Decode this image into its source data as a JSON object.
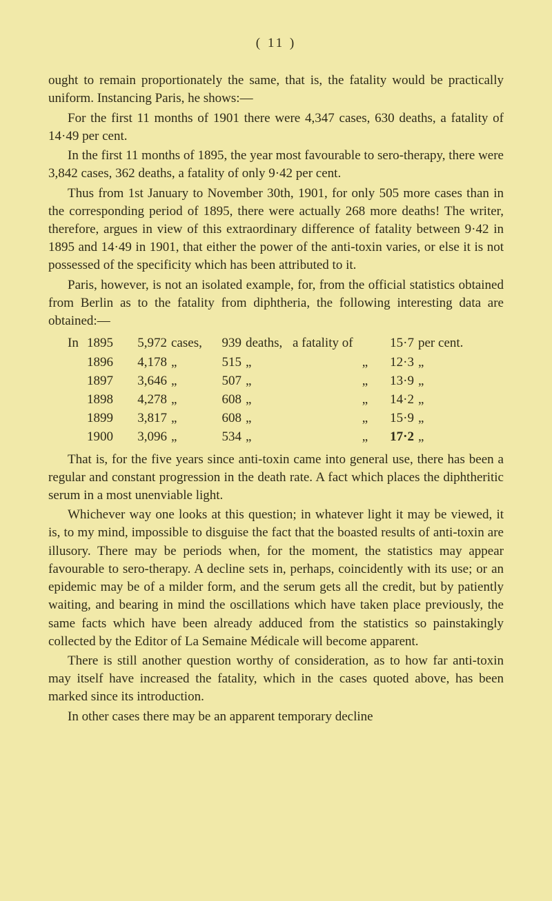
{
  "header": "( 11 )",
  "para1": "ought to remain proportionately the same, that is, the fatality would be practically uniform. Instancing Paris, he shows:—",
  "para2": "For the first 11 months of 1901 there were 4,347 cases, 630 deaths, a fatality of 14·49 per cent.",
  "para3": "In the first 11 months of 1895, the year most favourable to sero-therapy, there were 3,842 cases, 362 deaths, a fatality of only 9·42 per cent.",
  "para4": "Thus from 1st January to November 30th, 1901, for only 505 more cases than in the corresponding period of 1895, there were actually 268 more deaths! The writer, therefore, argues in view of this extraordinary difference of fatality between 9·42 in 1895 and 14·49 in 1901, that either the power of the anti-toxin varies, or else it is not possessed of the specificity which has been attributed to it.",
  "para5": "Paris, however, is not an isolated example, for, from the official statistics obtained from Berlin as to the fatality from diphtheria, the following interesting data are obtained:—",
  "table": {
    "row1": {
      "pre": "In",
      "year": "1895",
      "cases": "5,972",
      "w1": "cases,",
      "deaths": "939",
      "w2": "deaths,",
      "w3": "a fatality of",
      "w4": "",
      "pct": "15·7",
      "tail": "per cent."
    },
    "row2": {
      "pre": "",
      "year": "1896",
      "cases": "4,178",
      "w1": "„",
      "deaths": "515",
      "w2": "„",
      "w3": "",
      "w4": "„",
      "pct": "12·3",
      "tail": "„"
    },
    "row3": {
      "pre": "",
      "year": "1897",
      "cases": "3,646",
      "w1": "„",
      "deaths": "507",
      "w2": "„",
      "w3": "",
      "w4": "„",
      "pct": "13·9",
      "tail": "„"
    },
    "row4": {
      "pre": "",
      "year": "1898",
      "cases": "4,278",
      "w1": "„",
      "deaths": "608",
      "w2": "„",
      "w3": "",
      "w4": "„",
      "pct": "14·2",
      "tail": "„"
    },
    "row5": {
      "pre": "",
      "year": "1899",
      "cases": "3,817",
      "w1": "„",
      "deaths": "608",
      "w2": "„",
      "w3": "",
      "w4": "„",
      "pct": "15·9",
      "tail": "„"
    },
    "row6": {
      "pre": "",
      "year": "1900",
      "cases": "3,096",
      "w1": "„",
      "deaths": "534",
      "w2": "„",
      "w3": "",
      "w4": "„",
      "pct": "17·2",
      "tail": "„"
    }
  },
  "para6": "That is, for the five years since anti-toxin came into general use, there has been a regular and constant progression in the death rate. A fact which places the diphtheritic serum in a most unenviable light.",
  "para7": "Whichever way one looks at this question; in whatever light it may be viewed, it is, to my mind, impossible to disguise the fact that the boasted results of anti-toxin are illusory. There may be periods when, for the moment, the statistics may appear favourable to sero-therapy. A decline sets in, perhaps, coincidently with its use; or an epidemic may be of a milder form, and the serum gets all the credit, but by patiently waiting, and bearing in mind the oscillations which have taken place previously, the same facts which have been already adduced from the statistics so painstakingly collected by the Editor of La Semaine Médicale will become apparent.",
  "para8": "There is still another question worthy of consideration, as to how far anti-toxin may itself have increased the fatality, which in the cases quoted above, has been marked since its introduction.",
  "para9": "In other cases there may be an apparent temporary decline"
}
